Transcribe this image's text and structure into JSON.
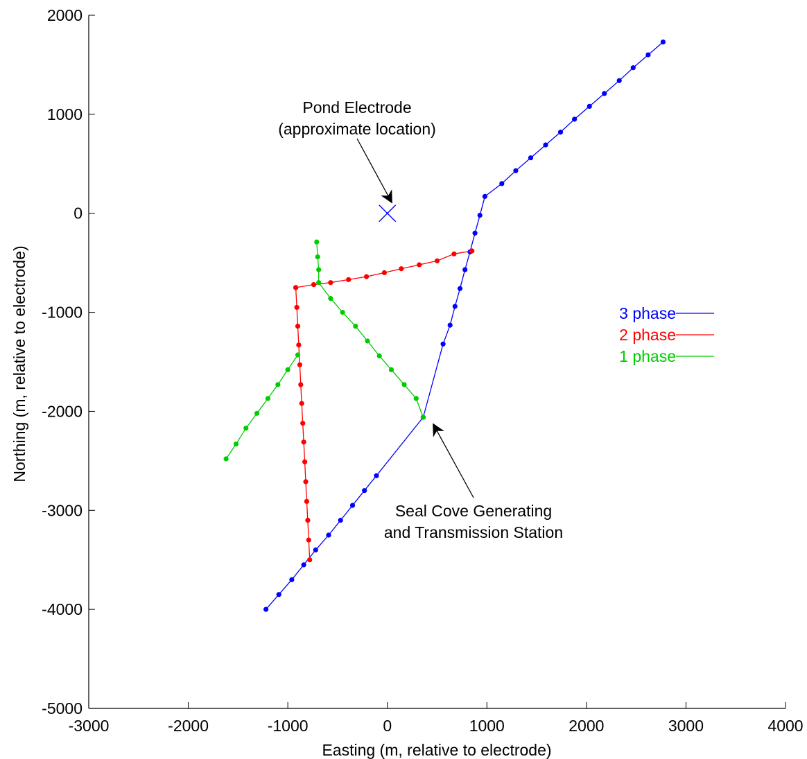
{
  "chart_data": {
    "type": "line",
    "title": "",
    "xlabel": "Easting (m, relative to electrode)",
    "ylabel": "Northing (m, relative to electrode)",
    "xlim": [
      -3000,
      4000
    ],
    "ylim": [
      -5000,
      2000
    ],
    "x_ticks": [
      -3000,
      -2000,
      -1000,
      0,
      1000,
      2000,
      3000,
      4000
    ],
    "y_ticks": [
      2000,
      1000,
      0,
      -1000,
      -2000,
      -3000,
      -4000,
      -5000
    ],
    "x_tick_labels": [
      "-3000",
      "-2000",
      "-1000",
      "0",
      "1000",
      "2000",
      "3000",
      "4000"
    ],
    "y_tick_labels": [
      "2000",
      "1000",
      "0",
      "-1000",
      "-2000",
      "-3000",
      "-4000",
      "-5000"
    ],
    "grid": false,
    "legend_position": "right",
    "series": [
      {
        "name": "3 phase",
        "color": "#0000ff",
        "segments": [
          [
            [
              -1220,
              -4000
            ],
            [
              -1090,
              -3850
            ],
            [
              -960,
              -3700
            ],
            [
              -840,
              -3550
            ],
            [
              -720,
              -3400
            ],
            [
              -590,
              -3250
            ],
            [
              -470,
              -3100
            ],
            [
              -350,
              -2950
            ],
            [
              -230,
              -2800
            ],
            [
              -110,
              -2650
            ],
            [
              360,
              -2060
            ]
          ],
          [
            [
              360,
              -2060
            ],
            [
              560,
              -1320
            ],
            [
              630,
              -1130
            ],
            [
              680,
              -940
            ],
            [
              730,
              -760
            ],
            [
              780,
              -570
            ],
            [
              830,
              -390
            ],
            [
              880,
              -200
            ],
            [
              930,
              -20
            ],
            [
              980,
              170
            ],
            [
              1150,
              300
            ],
            [
              1290,
              430
            ],
            [
              1440,
              560
            ],
            [
              1590,
              690
            ],
            [
              1740,
              820
            ],
            [
              1880,
              950
            ],
            [
              2030,
              1080
            ],
            [
              2180,
              1210
            ],
            [
              2330,
              1340
            ],
            [
              2470,
              1470
            ],
            [
              2620,
              1600
            ],
            [
              2770,
              1730
            ]
          ]
        ]
      },
      {
        "name": "2 phase",
        "color": "#ff0000",
        "segments": [
          [
            [
              850,
              -380
            ],
            [
              670,
              -410
            ],
            [
              500,
              -480
            ],
            [
              320,
              -520
            ],
            [
              140,
              -560
            ],
            [
              -30,
              -600
            ],
            [
              -210,
              -640
            ],
            [
              -390,
              -670
            ],
            [
              -570,
              -700
            ],
            [
              -740,
              -720
            ],
            [
              -920,
              -750
            ]
          ],
          [
            [
              -920,
              -750
            ],
            [
              -910,
              -950
            ],
            [
              -900,
              -1140
            ],
            [
              -890,
              -1330
            ],
            [
              -880,
              -1530
            ],
            [
              -870,
              -1730
            ],
            [
              -860,
              -1920
            ],
            [
              -850,
              -2120
            ],
            [
              -840,
              -2310
            ],
            [
              -830,
              -2510
            ],
            [
              -820,
              -2710
            ],
            [
              -810,
              -2910
            ],
            [
              -800,
              -3100
            ],
            [
              -790,
              -3300
            ],
            [
              -780,
              -3500
            ]
          ]
        ]
      },
      {
        "name": "1 phase",
        "color": "#00cc00",
        "segments": [
          [
            [
              -710,
              -290
            ],
            [
              -700,
              -440
            ],
            [
              -690,
              -570
            ],
            [
              -690,
              -700
            ],
            [
              -570,
              -860
            ],
            [
              -450,
              -1000
            ],
            [
              -320,
              -1140
            ],
            [
              -200,
              -1290
            ],
            [
              -80,
              -1440
            ],
            [
              40,
              -1580
            ],
            [
              170,
              -1730
            ],
            [
              290,
              -1870
            ],
            [
              360,
              -2060
            ]
          ],
          [
            [
              -1620,
              -2480
            ],
            [
              -1520,
              -2330
            ],
            [
              -1420,
              -2170
            ],
            [
              -1310,
              -2020
            ],
            [
              -1200,
              -1870
            ],
            [
              -1100,
              -1730
            ],
            [
              -1000,
              -1580
            ],
            [
              -900,
              -1430
            ]
          ]
        ]
      }
    ],
    "markers": [
      {
        "label": "Pond Electrode",
        "x": 0,
        "y": 0,
        "symbol": "x",
        "color": "#0000ff"
      }
    ],
    "annotations": [
      {
        "text_lines": [
          "Pond Electrode",
          "(approximate location)"
        ],
        "arrow_to": [
          0,
          0
        ]
      },
      {
        "text_lines": [
          "Seal Cove Generating",
          "and Transmission Station"
        ],
        "arrow_to": [
          360,
          -2060
        ]
      }
    ]
  }
}
